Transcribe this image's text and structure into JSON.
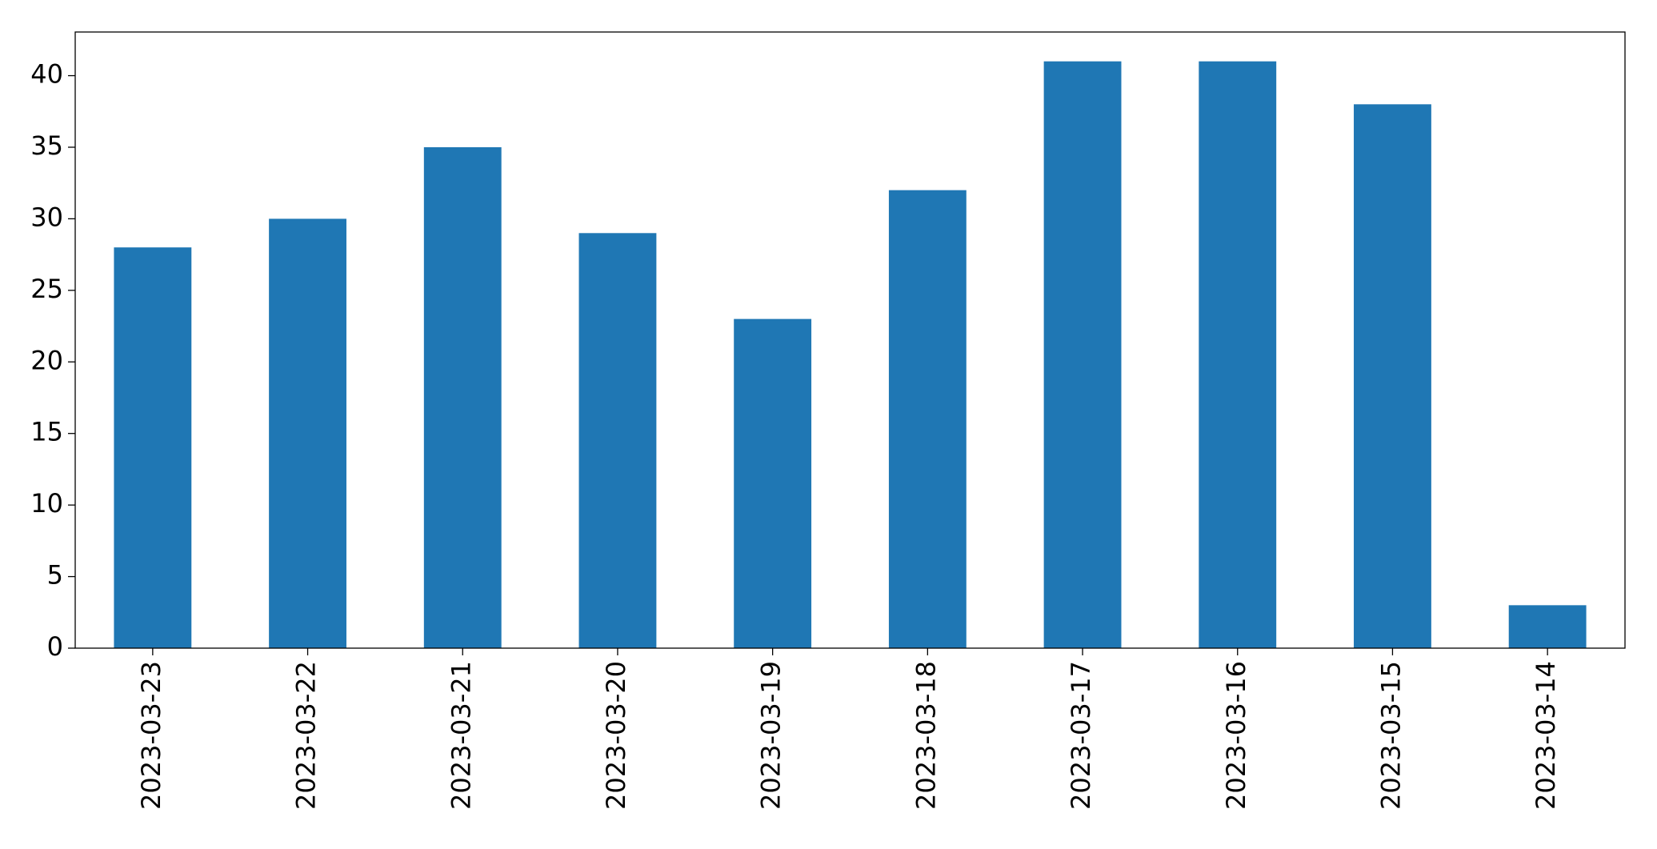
{
  "chart_data": {
    "type": "bar",
    "categories": [
      "2023-03-23",
      "2023-03-22",
      "2023-03-21",
      "2023-03-20",
      "2023-03-19",
      "2023-03-18",
      "2023-03-17",
      "2023-03-16",
      "2023-03-15",
      "2023-03-14"
    ],
    "values": [
      28,
      30,
      35,
      29,
      23,
      32,
      41,
      41,
      38,
      3
    ],
    "color": "#1f77b4",
    "ylim": [
      0,
      43.05
    ],
    "yticks": [
      0,
      5,
      10,
      15,
      20,
      25,
      30,
      35,
      40
    ],
    "grid": false
  }
}
